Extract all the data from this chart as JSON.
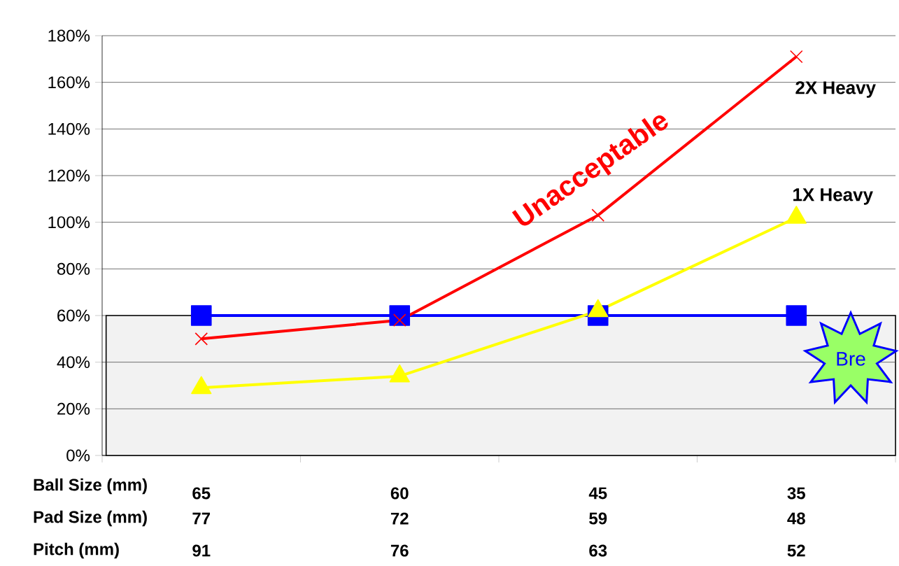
{
  "chart_data": {
    "type": "line",
    "categories": [
      "65",
      "60",
      "45",
      "35"
    ],
    "series": [
      {
        "color": "#0000ff",
        "marker": "square",
        "values": [
          60,
          60,
          60,
          60
        ]
      },
      {
        "name": "2X Heavy",
        "color": "#ff0000",
        "marker": "cross",
        "values": [
          50,
          58,
          103,
          171
        ]
      },
      {
        "name": "1X Heavy",
        "color": "#ffff00",
        "marker": "triangle",
        "values": [
          29,
          34,
          62,
          102
        ]
      }
    ],
    "ylim": [
      0,
      180
    ],
    "yticks": [
      {
        "value": 0,
        "label": "0%"
      },
      {
        "value": 20,
        "label": "20%"
      },
      {
        "value": 40,
        "label": "40%"
      },
      {
        "value": 60,
        "label": "60%"
      },
      {
        "value": 80,
        "label": "80%"
      },
      {
        "value": 100,
        "label": "100%"
      },
      {
        "value": 120,
        "label": "120%"
      },
      {
        "value": 140,
        "label": "140%"
      },
      {
        "value": 160,
        "label": "160%"
      },
      {
        "value": 180,
        "label": "180%"
      }
    ],
    "grid": "y",
    "line_style": "solid",
    "bands": [
      {
        "axis": "y",
        "from": 0,
        "to": 60,
        "color": "#f2f2f2"
      }
    ],
    "annotations": [
      "Unacceptable",
      "Ball Size (mm)",
      "Pad Size (mm)",
      "77",
      "72",
      "59",
      "48",
      "Pitch (mm)",
      "91",
      "76",
      "63",
      "52",
      "Bre"
    ]
  }
}
